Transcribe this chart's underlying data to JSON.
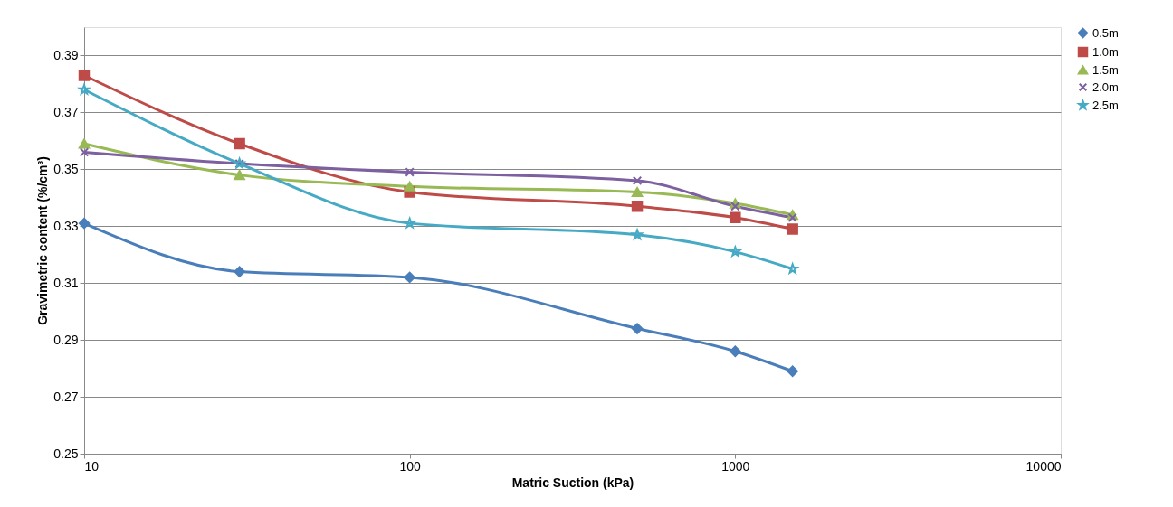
{
  "chart_data": {
    "type": "line",
    "xlabel": "Matric Suction (kPa)",
    "ylabel": "Gravimetric content (%/cm³)",
    "log": "x",
    "xlim": [
      10,
      10000
    ],
    "xticks": [
      10,
      100,
      1000,
      10000
    ],
    "ylim": [
      0.25,
      0.4
    ],
    "yticks": [
      0.25,
      0.27,
      0.29,
      0.31,
      0.33,
      0.35,
      0.37,
      0.39
    ],
    "grid": "y",
    "legend": "right",
    "x": [
      10,
      30,
      100,
      500,
      1000,
      1500
    ],
    "series": [
      {
        "name": "0.5m",
        "color": "#4a7ebb",
        "marker": "diamond",
        "values": [
          0.331,
          0.314,
          0.312,
          0.294,
          0.286,
          0.279
        ]
      },
      {
        "name": "1.0m",
        "color": "#be4b48",
        "marker": "square",
        "values": [
          0.383,
          0.359,
          0.342,
          0.337,
          0.333,
          0.329
        ]
      },
      {
        "name": "1.5m",
        "color": "#98b954",
        "marker": "triangle",
        "values": [
          0.359,
          0.348,
          0.344,
          0.342,
          0.338,
          0.334
        ]
      },
      {
        "name": "2.0m",
        "color": "#7d60a0",
        "marker": "cross",
        "values": [
          0.356,
          0.352,
          0.349,
          0.346,
          0.337,
          0.333
        ]
      },
      {
        "name": "2.5m",
        "color": "#46aac5",
        "marker": "star",
        "values": [
          0.378,
          0.352,
          0.331,
          0.327,
          0.321,
          0.315
        ]
      }
    ]
  }
}
